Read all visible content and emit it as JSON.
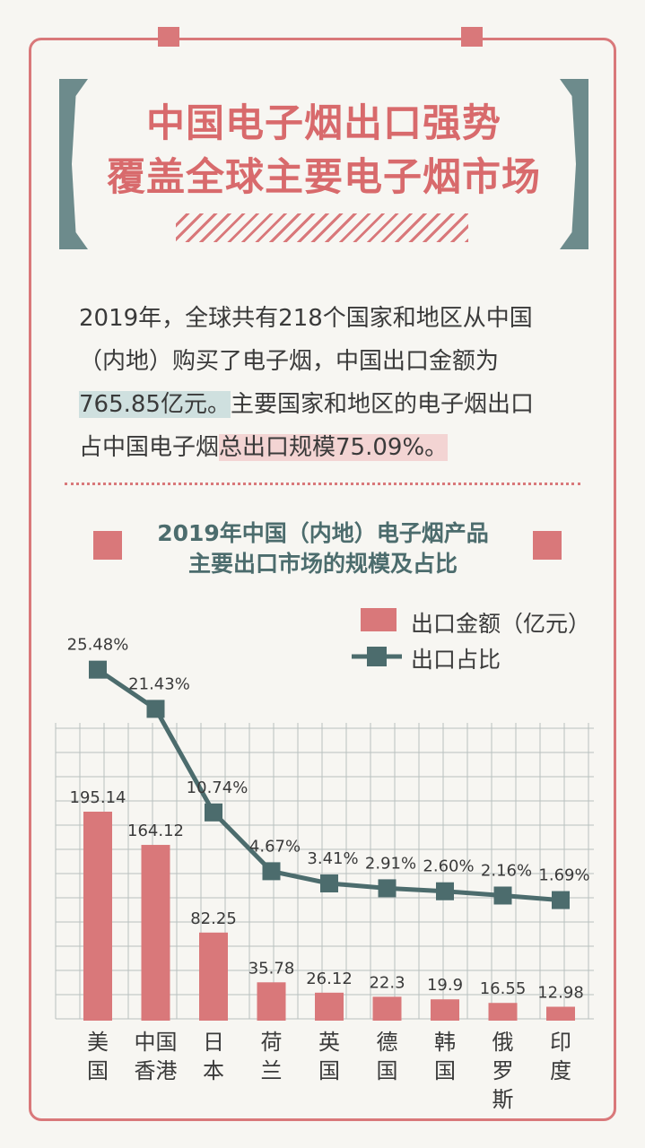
{
  "header": {
    "title_line1": "中国电子烟出口强势",
    "title_line2": "覆盖全球主要电子烟市场"
  },
  "intro": {
    "line1": "2019年，全球共有218个国家和地区从中国",
    "line2": "（内地）购买了电子烟，中国出口金额为",
    "line3_hl": "765.85亿元。",
    "line3_rest": "主要国家和地区的电子烟出口",
    "line4_pre": "占中国电子烟",
    "line4_hl": "总出口规模75.09%。"
  },
  "chart_data": {
    "type": "bar",
    "title_line1": "2019年中国（内地）电子烟产品",
    "title_line2": "主要出口市场的规模及占比",
    "categories": [
      "美国",
      "中国香港",
      "日本",
      "荷兰",
      "英国",
      "德国",
      "韩国",
      "俄罗斯",
      "印度"
    ],
    "category_lines": [
      [
        "美",
        "国"
      ],
      [
        "中国",
        "香港"
      ],
      [
        "日",
        "本"
      ],
      [
        "荷",
        "兰"
      ],
      [
        "英",
        "国"
      ],
      [
        "德",
        "国"
      ],
      [
        "韩",
        "国"
      ],
      [
        "俄",
        "罗",
        "斯"
      ],
      [
        "印",
        "度"
      ]
    ],
    "series": [
      {
        "name": "出口金额（亿元）",
        "type": "bar",
        "values": [
          195.14,
          164.12,
          82.25,
          35.78,
          26.12,
          22.3,
          19.9,
          16.55,
          12.98
        ],
        "labels": [
          "195.14",
          "164.12",
          "82.25",
          "35.78",
          "26.12",
          "22.3",
          "19.9",
          "16.55",
          "12.98"
        ]
      },
      {
        "name": "出口占比",
        "type": "line",
        "values": [
          25.48,
          21.43,
          10.74,
          4.67,
          3.41,
          2.91,
          2.6,
          2.16,
          1.69
        ],
        "labels": [
          "25.48%",
          "21.43%",
          "10.74%",
          "4.67%",
          "3.41%",
          "2.91%",
          "2.60%",
          "2.16%",
          "1.69%"
        ]
      }
    ],
    "grid": true,
    "legend_position": "top-right"
  },
  "colors": {
    "accent": "#d9787a",
    "teal": "#4c6c6d",
    "grid": "#b9c0bf"
  }
}
